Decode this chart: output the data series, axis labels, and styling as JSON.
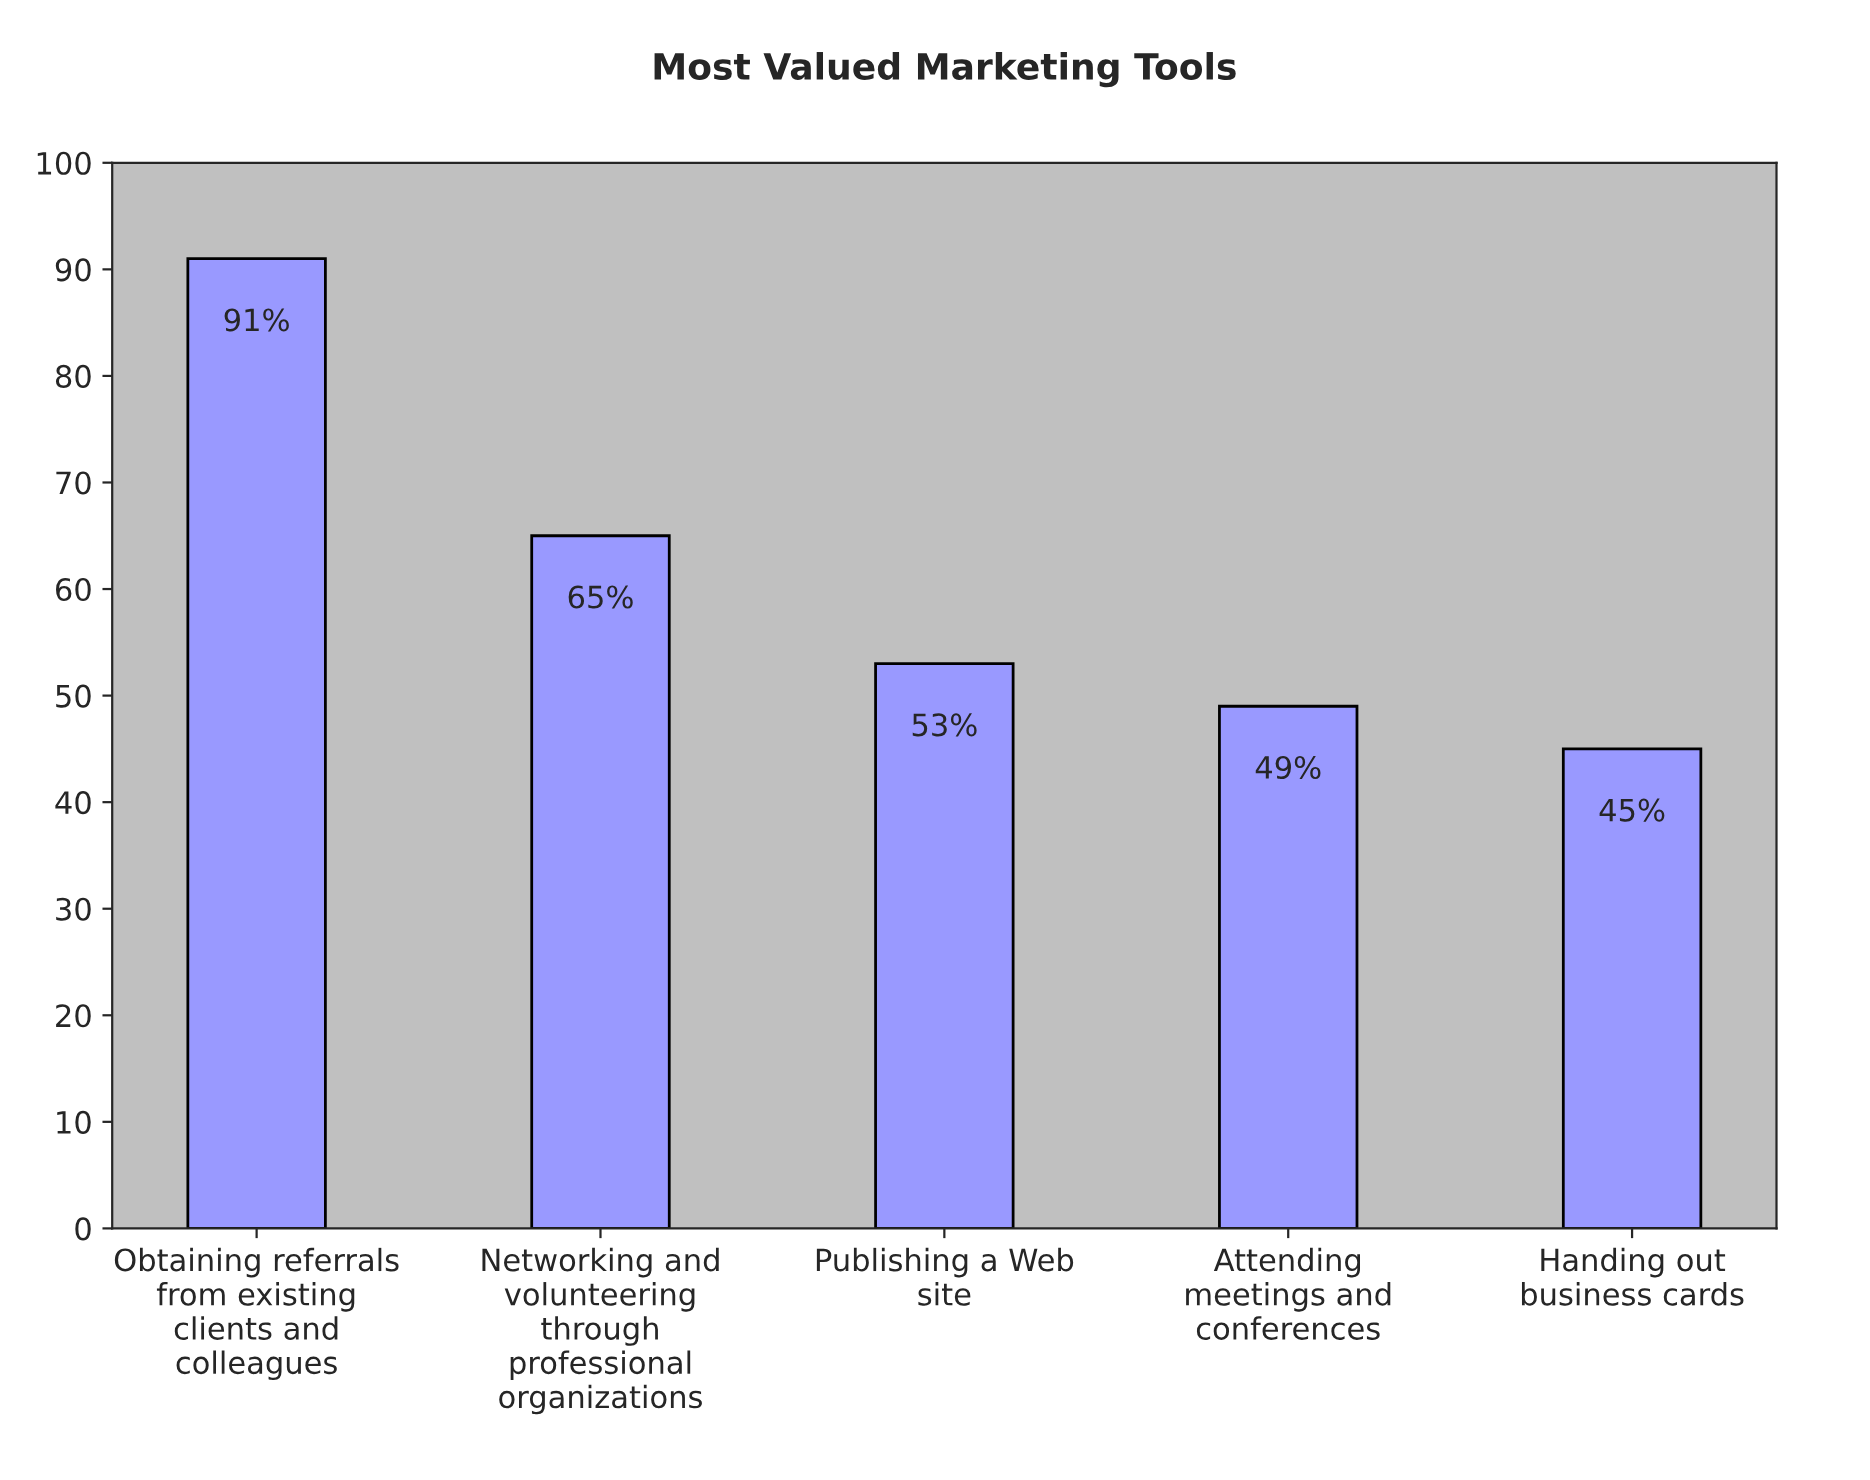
{
  "chart_data": {
    "type": "bar",
    "title": "Most Valued Marketing Tools",
    "categories": [
      "Obtaining referrals\nfrom existing\nclients and\ncolleagues",
      "Networking and\nvolunteering\nthrough\nprofessional\norganizations",
      "Publishing a Web\nsite",
      "Attending\nmeetings and\nconferences",
      "Handing out\nbusiness cards"
    ],
    "values": [
      91,
      65,
      53,
      49,
      45
    ],
    "value_labels": [
      "91%",
      "65%",
      "53%",
      "49%",
      "45%"
    ],
    "color": "#9999ff",
    "ylim": [
      0,
      100
    ],
    "yticks": [
      0,
      10,
      20,
      30,
      40,
      50,
      60,
      70,
      80,
      90,
      100
    ],
    "grid": false
  }
}
